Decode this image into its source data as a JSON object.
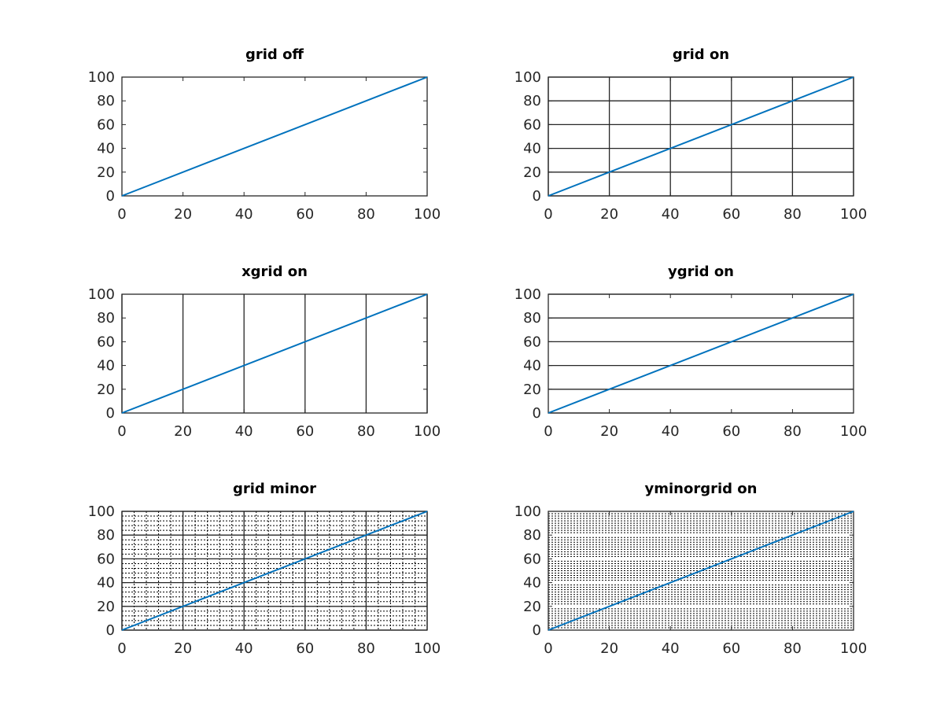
{
  "chart_data": [
    {
      "type": "line",
      "title": "grid off",
      "x": [
        0,
        100
      ],
      "values": [
        0,
        100
      ],
      "color": "#0072bd",
      "xlim": [
        0,
        100
      ],
      "ylim": [
        0,
        100
      ],
      "xticks": [
        0,
        20,
        40,
        60,
        80,
        100
      ],
      "yticks": [
        0,
        20,
        40,
        60,
        80,
        100
      ],
      "xgrid": false,
      "ygrid": false,
      "xminorgrid": false,
      "yminorgrid": false
    },
    {
      "type": "line",
      "title": "grid on",
      "x": [
        0,
        100
      ],
      "values": [
        0,
        100
      ],
      "color": "#0072bd",
      "xlim": [
        0,
        100
      ],
      "ylim": [
        0,
        100
      ],
      "xticks": [
        0,
        20,
        40,
        60,
        80,
        100
      ],
      "yticks": [
        0,
        20,
        40,
        60,
        80,
        100
      ],
      "xgrid": true,
      "ygrid": true,
      "xminorgrid": false,
      "yminorgrid": false
    },
    {
      "type": "line",
      "title": "xgrid on",
      "x": [
        0,
        100
      ],
      "values": [
        0,
        100
      ],
      "color": "#0072bd",
      "xlim": [
        0,
        100
      ],
      "ylim": [
        0,
        100
      ],
      "xticks": [
        0,
        20,
        40,
        60,
        80,
        100
      ],
      "yticks": [
        0,
        20,
        40,
        60,
        80,
        100
      ],
      "xgrid": true,
      "ygrid": false,
      "xminorgrid": false,
      "yminorgrid": false
    },
    {
      "type": "line",
      "title": "ygrid on",
      "x": [
        0,
        100
      ],
      "values": [
        0,
        100
      ],
      "color": "#0072bd",
      "xlim": [
        0,
        100
      ],
      "ylim": [
        0,
        100
      ],
      "xticks": [
        0,
        20,
        40,
        60,
        80,
        100
      ],
      "yticks": [
        0,
        20,
        40,
        60,
        80,
        100
      ],
      "xgrid": false,
      "ygrid": true,
      "xminorgrid": false,
      "yminorgrid": false
    },
    {
      "type": "line",
      "title": "grid minor",
      "x": [
        0,
        100
      ],
      "values": [
        0,
        100
      ],
      "color": "#0072bd",
      "xlim": [
        0,
        100
      ],
      "ylim": [
        0,
        100
      ],
      "xticks": [
        0,
        20,
        40,
        60,
        80,
        100
      ],
      "yticks": [
        0,
        20,
        40,
        60,
        80,
        100
      ],
      "xgrid": true,
      "ygrid": true,
      "xminorgrid": true,
      "yminorgrid": true,
      "xminorticks": [
        4,
        8,
        12,
        16,
        24,
        28,
        32,
        36,
        44,
        48,
        52,
        56,
        64,
        68,
        72,
        76,
        84,
        88,
        92,
        96
      ],
      "yminorticks": [
        4,
        8,
        12,
        16,
        24,
        28,
        32,
        36,
        44,
        48,
        52,
        56,
        64,
        68,
        72,
        76,
        84,
        88,
        92,
        96
      ]
    },
    {
      "type": "line",
      "title": "yminorgrid on",
      "x": [
        0,
        100
      ],
      "values": [
        0,
        100
      ],
      "color": "#0072bd",
      "xlim": [
        0,
        100
      ],
      "ylim": [
        0,
        100
      ],
      "xticks": [
        0,
        20,
        40,
        60,
        80,
        100
      ],
      "yticks": [
        0,
        20,
        40,
        60,
        80,
        100
      ],
      "xgrid": false,
      "ygrid": false,
      "xminorgrid": false,
      "yminorgrid": true,
      "yminorticks": [
        2,
        4,
        6,
        8,
        10,
        12,
        14,
        16,
        18,
        22,
        24,
        26,
        28,
        30,
        32,
        34,
        36,
        38,
        42,
        44,
        46,
        48,
        50,
        52,
        54,
        56,
        58,
        62,
        64,
        66,
        68,
        70,
        72,
        74,
        76,
        78,
        82,
        84,
        86,
        88,
        90,
        92,
        94,
        96,
        98
      ]
    }
  ]
}
